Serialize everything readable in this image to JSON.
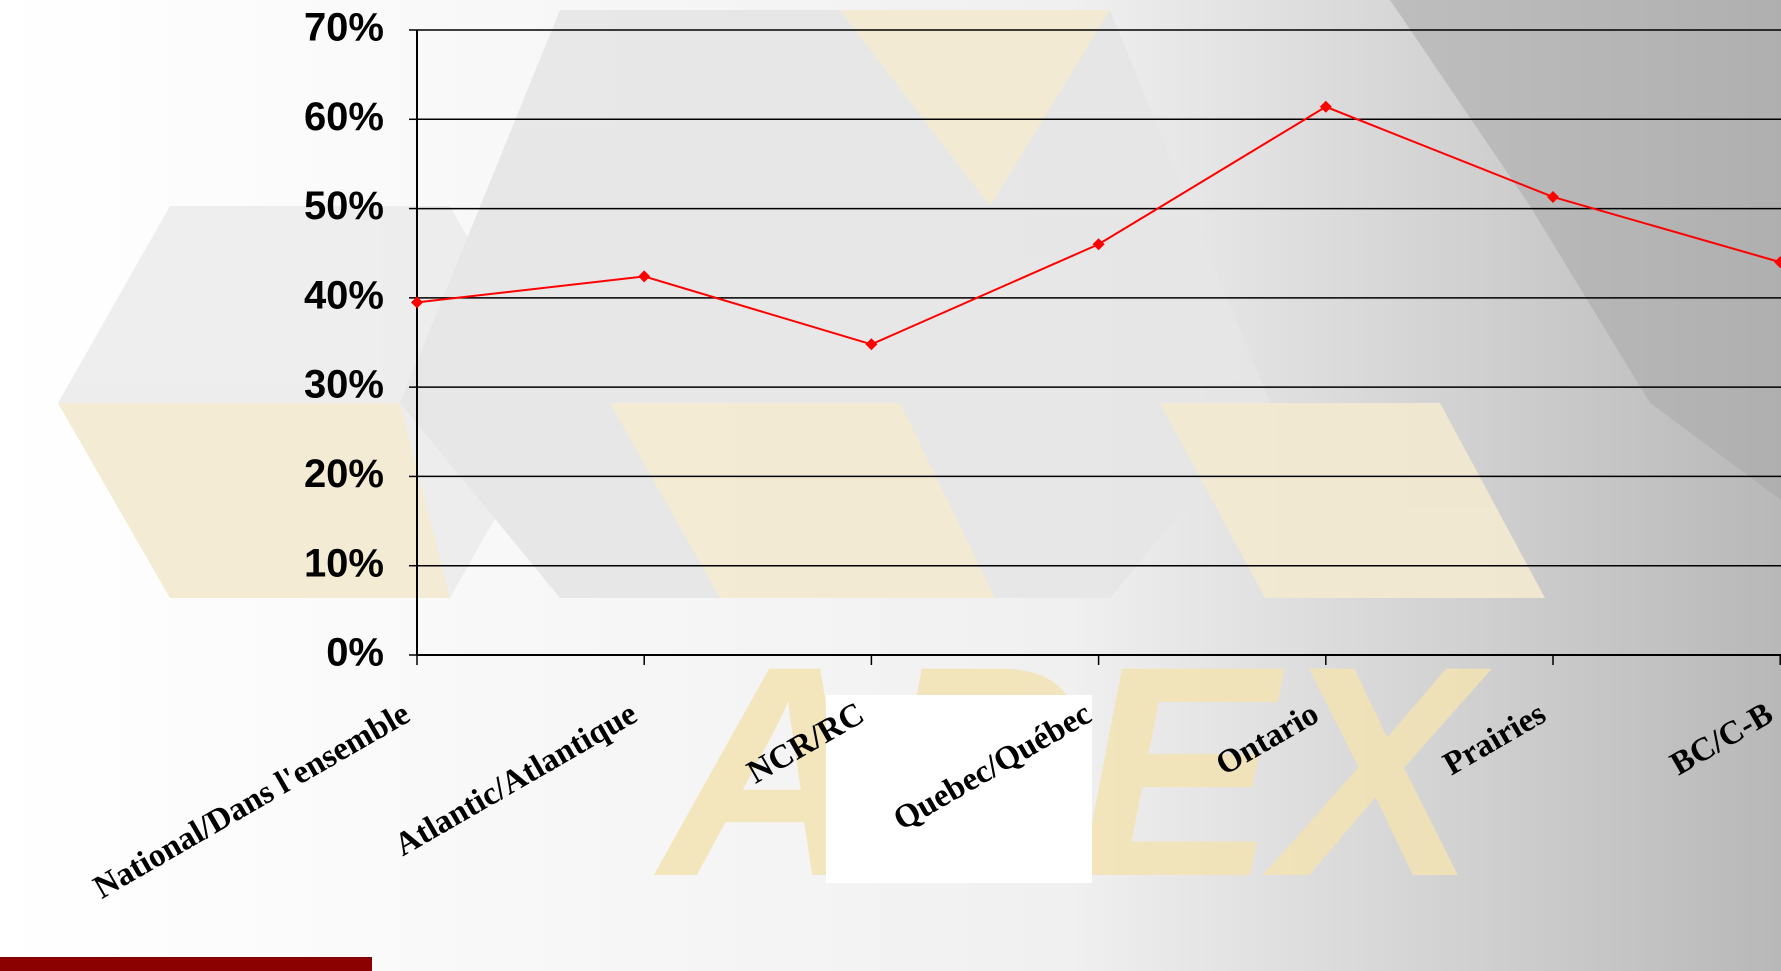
{
  "chart_data": {
    "type": "line",
    "watermark": "APEX",
    "categories": [
      "National/Dans l'ensemble",
      "Atlantic/Atlantique",
      "NCR/RC",
      "Quebec/Québec",
      "Ontario",
      "Prairies",
      "BC/C-B"
    ],
    "series": [
      {
        "name": null,
        "color": "#ff0000",
        "values": [
          39.5,
          42.4,
          34.8,
          46.0,
          61.4,
          51.3,
          44.0
        ]
      }
    ],
    "ylim": [
      0,
      70
    ],
    "yticks": [
      {
        "value": 0,
        "label": "0%"
      },
      {
        "value": 10,
        "label": "10%"
      },
      {
        "value": 20,
        "label": "20%"
      },
      {
        "value": 30,
        "label": "30%"
      },
      {
        "value": 40,
        "label": "40%"
      },
      {
        "value": 50,
        "label": "50%"
      },
      {
        "value": 60,
        "label": "60%"
      },
      {
        "value": 70,
        "label": "70%"
      }
    ],
    "grid": true
  }
}
